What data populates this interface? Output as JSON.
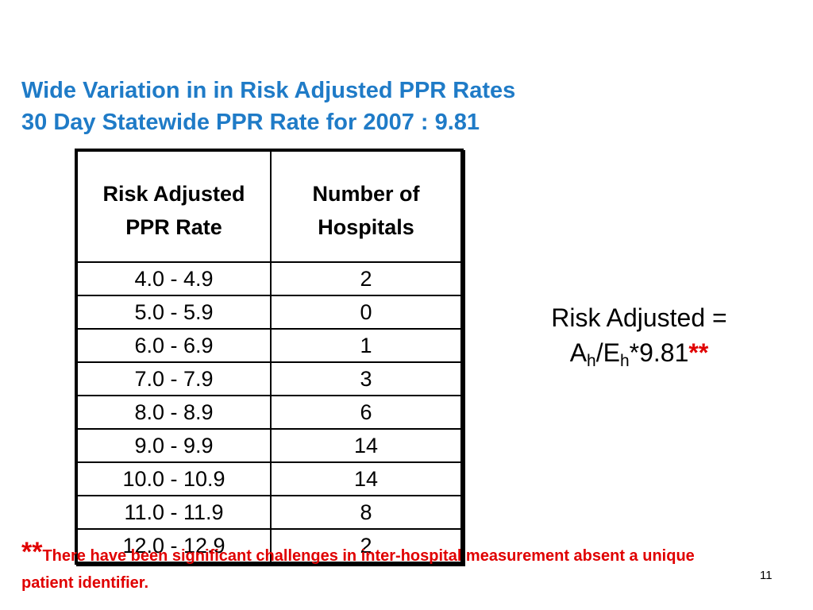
{
  "title": {
    "line1": "Wide Variation in in Risk Adjusted PPR Rates",
    "line2": "30 Day Statewide PPR Rate for 2007 : 9.81"
  },
  "table": {
    "headers": {
      "col1_line1": "Risk Adjusted",
      "col1_line2": "PPR Rate",
      "col2_line1": "Number of",
      "col2_line2": "Hospitals"
    },
    "rows": [
      {
        "range": "4.0 - 4.9",
        "count": "2"
      },
      {
        "range": "5.0 - 5.9",
        "count": "0"
      },
      {
        "range": "6.0 - 6.9",
        "count": "1"
      },
      {
        "range": "7.0 - 7.9",
        "count": "3"
      },
      {
        "range": "8.0 - 8.9",
        "count": "6"
      },
      {
        "range": "9.0 - 9.9",
        "count": "14"
      },
      {
        "range": "10.0 - 10.9",
        "count": "14"
      },
      {
        "range": "11.0 - 11.9",
        "count": "8"
      },
      {
        "range": "12.0 - 12.9",
        "count": "2"
      }
    ]
  },
  "formula": {
    "line1": "Risk Adjusted =",
    "a": "A",
    "a_sub": "h",
    "slash": "/",
    "e": "E",
    "e_sub": "h",
    "multiplier": "*9.81",
    "stars": "**"
  },
  "footnote": {
    "stars": "**",
    "text": "There have been significant challenges in inter-hospital measurement absent a unique patient identifier."
  },
  "page_number": "11",
  "colors": {
    "title": "#1f7bc7",
    "footnote": "#e00000"
  }
}
